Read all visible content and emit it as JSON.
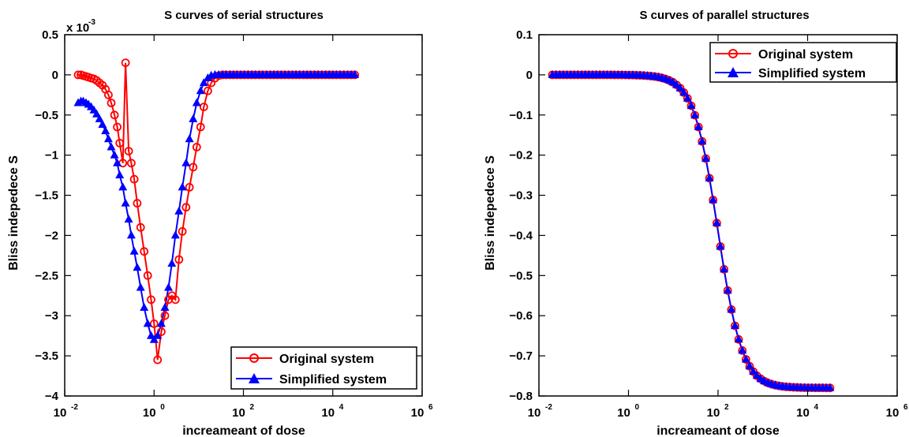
{
  "chart_data": [
    {
      "type": "line",
      "title": "S curves of serial structures",
      "xlabel": "increameant of dose",
      "ylabel": "Bliss indepedece S",
      "x_scale": "log",
      "xlim": [
        0.01,
        1000000
      ],
      "ylim": [
        -0.004,
        0.0005
      ],
      "y_multiplier_label": "x 10",
      "y_multiplier_exp": "-3",
      "x_ticks": [
        {
          "base": "10",
          "exp": "-2"
        },
        {
          "base": "10",
          "exp": "0"
        },
        {
          "base": "10",
          "exp": "2"
        },
        {
          "base": "10",
          "exp": "4"
        },
        {
          "base": "10",
          "exp": "6"
        }
      ],
      "y_ticks": [
        {
          "value": 0.0005,
          "label": "0.5"
        },
        {
          "value": 0,
          "label": "0"
        },
        {
          "value": -0.0005,
          "label": "-0.5"
        },
        {
          "value": -0.001,
          "label": "-1"
        },
        {
          "value": -0.0015,
          "label": "-1.5"
        },
        {
          "value": -0.002,
          "label": "-2"
        },
        {
          "value": -0.0025,
          "label": "-2.5"
        },
        {
          "value": -0.003,
          "label": "-3"
        },
        {
          "value": -0.0035,
          "label": "-3.5"
        },
        {
          "value": -0.004,
          "label": "-4"
        }
      ],
      "legend_position": "bottom-right",
      "series": [
        {
          "name": "Original system",
          "color": "#ff0000",
          "marker": "circle",
          "x": [
            0.02,
            0.023,
            0.026,
            0.03,
            0.034,
            0.039,
            0.045,
            0.052,
            0.06,
            0.07,
            0.082,
            0.095,
            0.11,
            0.13,
            0.15,
            0.17,
            0.2,
            0.23,
            0.27,
            0.31,
            0.36,
            0.42,
            0.5,
            0.6,
            0.72,
            0.86,
            1.0,
            1.2,
            1.45,
            1.75,
            2.1,
            2.5,
            3.0,
            3.6,
            4.3,
            5.2,
            6.2,
            7.5,
            9,
            11,
            13,
            16,
            19,
            23,
            28,
            34,
            41,
            50,
            60,
            72,
            87,
            105,
            127,
            153,
            185,
            225,
            270,
            330,
            400,
            480,
            580,
            700,
            850,
            1030,
            1250,
            1500,
            1800,
            2200,
            2650,
            3200,
            3900,
            4700,
            5700,
            6900,
            8300,
            10000,
            12100,
            14600,
            17700,
            21400,
            25800,
            31000
          ],
          "y": [
            0,
            0,
            -1e-05,
            -2e-05,
            -3e-05,
            -4e-05,
            -5e-05,
            -7e-05,
            -0.0001,
            -0.00013,
            -0.00018,
            -0.00025,
            -0.00035,
            -0.0005,
            -0.00065,
            -0.00085,
            -0.0011,
            0.00015,
            -0.00095,
            -0.0011,
            -0.0013,
            -0.0016,
            -0.0019,
            -0.0022,
            -0.0025,
            -0.0028,
            -0.0031,
            -0.00355,
            -0.0032,
            -0.003,
            -0.0028,
            -0.00275,
            -0.0028,
            -0.0023,
            -0.00195,
            -0.00165,
            -0.0014,
            -0.00115,
            -0.0009,
            -0.00065,
            -0.0004,
            -0.0002,
            -0.0001,
            -4e-05,
            -1e-05,
            0,
            0,
            0,
            0,
            0,
            0,
            0,
            0,
            0,
            0,
            0,
            0,
            0,
            0,
            0,
            0,
            0,
            0,
            0,
            0,
            0,
            0,
            0,
            0,
            0,
            0,
            0,
            0,
            0,
            0,
            0,
            0,
            0,
            0,
            0,
            0,
            0
          ]
        },
        {
          "name": "Simplified system",
          "color": "#0000ff",
          "marker": "triangle",
          "x": [
            0.02,
            0.023,
            0.026,
            0.03,
            0.034,
            0.039,
            0.045,
            0.052,
            0.06,
            0.07,
            0.082,
            0.095,
            0.11,
            0.13,
            0.15,
            0.17,
            0.2,
            0.23,
            0.27,
            0.31,
            0.36,
            0.42,
            0.5,
            0.6,
            0.72,
            0.86,
            1.0,
            1.2,
            1.45,
            1.75,
            2.1,
            2.5,
            3.0,
            3.6,
            4.3,
            5.2,
            6.2,
            7.5,
            9,
            11,
            13,
            16,
            19,
            23,
            28,
            34,
            41,
            50,
            60,
            72,
            87,
            105,
            127,
            153,
            185,
            225,
            270,
            330,
            400,
            480,
            580,
            700,
            850,
            1030,
            1250,
            1500,
            1800,
            2200,
            2650,
            3200,
            3900,
            4700,
            5700,
            6900,
            8300,
            10000,
            12100,
            14600,
            17700,
            21400,
            25800,
            31000
          ],
          "y": [
            -0.00035,
            -0.00033,
            -0.00033,
            -0.00035,
            -0.00037,
            -0.0004,
            -0.00044,
            -0.00049,
            -0.00055,
            -0.00062,
            -0.0007,
            -0.0008,
            -0.0009,
            -0.001,
            -0.0011,
            -0.00125,
            -0.0014,
            -0.0016,
            -0.0018,
            -0.002,
            -0.0022,
            -0.0024,
            -0.00265,
            -0.0029,
            -0.0031,
            -0.00325,
            -0.0033,
            -0.00325,
            -0.0031,
            -0.0029,
            -0.00265,
            -0.00235,
            -0.002,
            -0.0017,
            -0.0014,
            -0.0011,
            -0.0008,
            -0.00055,
            -0.00035,
            -0.0002,
            -0.0001,
            -4e-05,
            -1e-05,
            0,
            0,
            0,
            0,
            0,
            0,
            0,
            0,
            0,
            0,
            0,
            0,
            0,
            0,
            0,
            0,
            0,
            0,
            0,
            0,
            0,
            0,
            0,
            0,
            0,
            0,
            0,
            0,
            0,
            0,
            0,
            0,
            0,
            0,
            0,
            0,
            0,
            0,
            0
          ]
        }
      ]
    },
    {
      "type": "line",
      "title": "S curves of parallel structures",
      "xlabel": "increameant of dose",
      "ylabel": "Bliss indepedece S",
      "x_scale": "log",
      "xlim": [
        0.01,
        1000000
      ],
      "ylim": [
        -0.8,
        0.1
      ],
      "x_ticks": [
        {
          "base": "10",
          "exp": "-2"
        },
        {
          "base": "10",
          "exp": "0"
        },
        {
          "base": "10",
          "exp": "2"
        },
        {
          "base": "10",
          "exp": "4"
        },
        {
          "base": "10",
          "exp": "6"
        }
      ],
      "y_ticks": [
        {
          "value": 0.1,
          "label": "0.1"
        },
        {
          "value": 0,
          "label": "0"
        },
        {
          "value": -0.1,
          "label": "-0.1"
        },
        {
          "value": -0.2,
          "label": "-0.2"
        },
        {
          "value": -0.3,
          "label": "-0.3"
        },
        {
          "value": -0.4,
          "label": "-0.4"
        },
        {
          "value": -0.5,
          "label": "-0.5"
        },
        {
          "value": -0.6,
          "label": "-0.6"
        },
        {
          "value": -0.7,
          "label": "-0.7"
        },
        {
          "value": -0.8,
          "label": "-0.8"
        }
      ],
      "legend_position": "top-right",
      "sigmoid": {
        "low": -0.78,
        "mid_x": 100,
        "slope": 1.6
      },
      "series": [
        {
          "name": "Original system",
          "color": "#ff0000",
          "marker": "circle"
        },
        {
          "name": "Simplified system",
          "color": "#0000ff",
          "marker": "triangle"
        }
      ]
    }
  ]
}
